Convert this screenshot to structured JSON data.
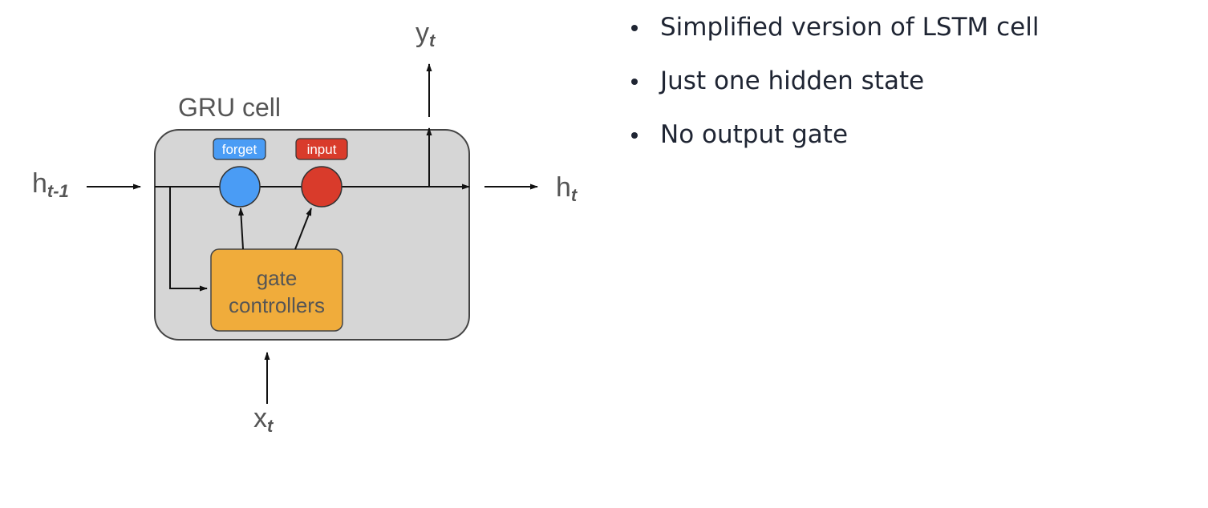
{
  "diagram": {
    "cell_title": "GRU cell",
    "forget_label": "forget",
    "input_label": "input",
    "gate_line1": "gate",
    "gate_line2": "controllers",
    "h_prev_base": "h",
    "h_prev_sub": "t-1",
    "h_out_base": "h",
    "h_out_sub": "t",
    "y_base": "y",
    "y_sub": "t",
    "x_base": "x",
    "x_sub": "t",
    "colors": {
      "cell_fill": "#d6d6d6",
      "forget_gate": "#4a9cf5",
      "input_gate": "#d93b2b",
      "controller": "#f0ac3b"
    }
  },
  "bullets": [
    "Simplified version of LSTM cell",
    "Just one hidden state",
    "No output gate"
  ]
}
